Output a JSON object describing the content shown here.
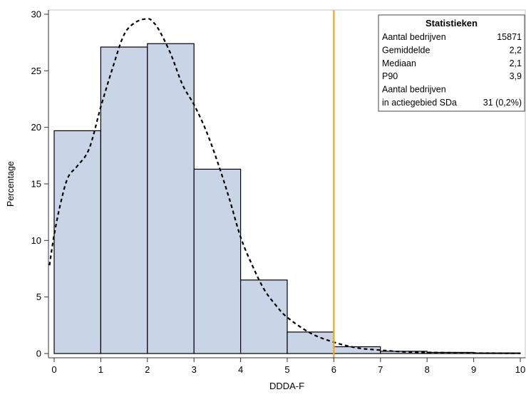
{
  "chart_data": {
    "type": "histogram",
    "xlabel": "DDDA-F",
    "ylabel": "Percentage",
    "xlim": [
      0,
      10
    ],
    "ylim": [
      0,
      30
    ],
    "x_ticks": [
      0,
      1,
      2,
      3,
      4,
      5,
      6,
      7,
      8,
      9,
      10
    ],
    "y_ticks": [
      0,
      5,
      10,
      15,
      20,
      25,
      30
    ],
    "bin_edges": [
      0,
      1,
      2,
      3,
      4,
      5,
      6,
      7,
      8,
      9,
      10
    ],
    "values": [
      19.7,
      27.1,
      27.4,
      16.3,
      6.5,
      1.9,
      0.6,
      0.2,
      0.1,
      0.05
    ],
    "bar_color": "#c9d5e6",
    "bar_edge_color": "#000000",
    "density_curve": {
      "style": "dashed",
      "color": "#000000",
      "x": [
        -0.1,
        0,
        0.15,
        0.3,
        0.5,
        0.75,
        1.0,
        1.25,
        1.5,
        1.75,
        2.0,
        2.1,
        2.25,
        2.5,
        2.75,
        3.0,
        3.25,
        3.5,
        3.75,
        4.0,
        4.25,
        4.5,
        4.75,
        5.0,
        5.5,
        6.0,
        6.5,
        7.0,
        7.5,
        8.0,
        9.0,
        10.0
      ],
      "y": [
        7.8,
        10.5,
        13.5,
        15.6,
        16.6,
        18.1,
        21.8,
        25.2,
        28.2,
        29.3,
        29.6,
        29.4,
        28.6,
        26.5,
        23.8,
        22.0,
        19.8,
        17.0,
        13.8,
        10.3,
        7.8,
        5.7,
        4.3,
        3.2,
        1.8,
        1.0,
        0.5,
        0.3,
        0.15,
        0.1,
        0.04,
        0.02
      ]
    },
    "reference_line": {
      "x": 6,
      "color": "#f5a31a"
    },
    "inset_table": {
      "title": "Statistieken",
      "rows": [
        {
          "label": "Aantal bedrijven",
          "value": "15871"
        },
        {
          "label": "Gemiddelde",
          "value": "2,2"
        },
        {
          "label": "Mediaan",
          "value": "2,1"
        },
        {
          "label": "P90",
          "value": "3,9"
        },
        {
          "label": "Aantal bedrijven",
          "value": ""
        },
        {
          "label": "in actiegebied SDa",
          "value": "31 (0,2%)"
        }
      ]
    }
  }
}
